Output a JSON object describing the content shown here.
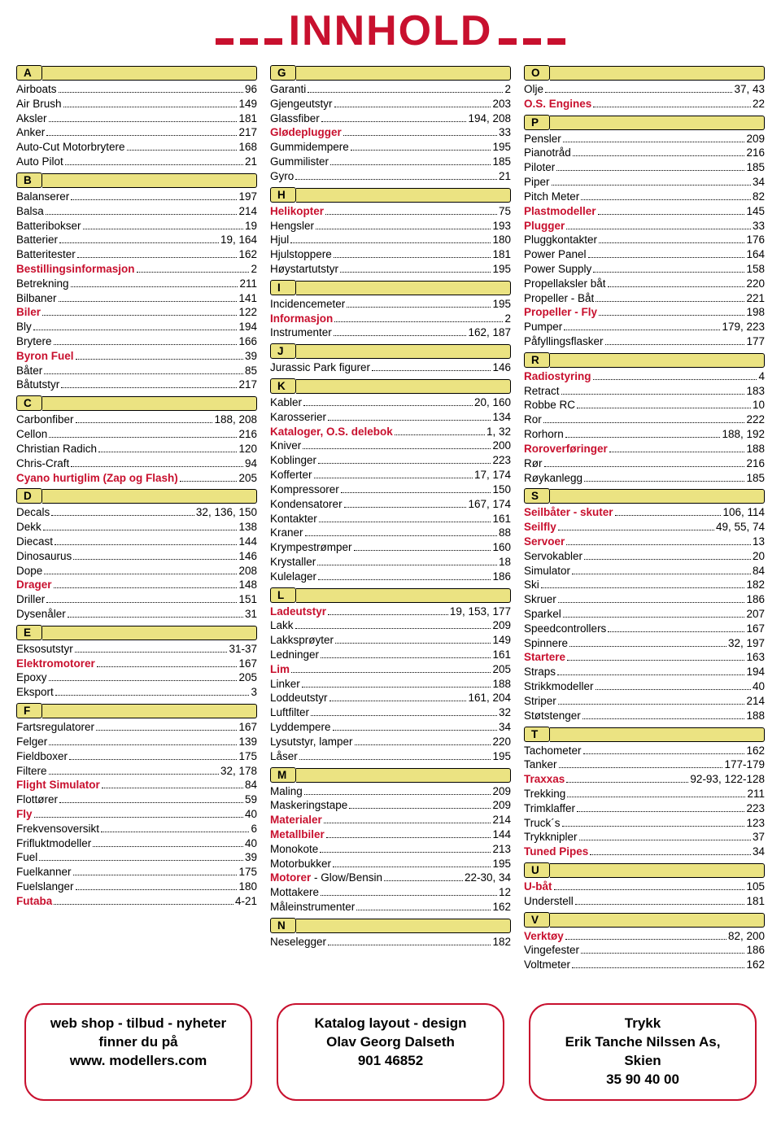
{
  "title_text": "INNHOLD",
  "colors": {
    "accent": "#c8102e",
    "letter_bg": "#ebe382",
    "text": "#000000",
    "background": "#ffffff"
  },
  "columns": [
    {
      "sections": [
        {
          "letter": "A",
          "items": [
            {
              "label": "Airboats",
              "page": "96"
            },
            {
              "label": "Air Brush",
              "page": "149"
            },
            {
              "label": "Aksler",
              "page": "181"
            },
            {
              "label": "Anker",
              "page": "217"
            },
            {
              "label": "Auto-Cut Motorbrytere",
              "page": "168"
            },
            {
              "label": "Auto Pilot",
              "page": "21"
            }
          ]
        },
        {
          "letter": "B",
          "items": [
            {
              "label": "Balanserer",
              "page": "197"
            },
            {
              "label": "Balsa",
              "page": "214"
            },
            {
              "label": "Batteribokser",
              "page": "19"
            },
            {
              "label": "Batterier",
              "page": "19, 164"
            },
            {
              "label": "Batteritester",
              "page": "162"
            },
            {
              "label": "Bestillingsinformasjon",
              "page": "2",
              "bold": true,
              "red": true
            },
            {
              "label": "Betrekning",
              "page": "211"
            },
            {
              "label": "Bilbaner",
              "page": "141"
            },
            {
              "label": "Biler",
              "page": "122",
              "bold": true,
              "red": true
            },
            {
              "label": "Bly",
              "page": "194"
            },
            {
              "label": "Brytere",
              "page": "166"
            },
            {
              "label": "Byron Fuel",
              "page": "39",
              "bold": true,
              "red": true
            },
            {
              "label": "Båter",
              "page": "85"
            },
            {
              "label": "Båtutstyr",
              "page": "217"
            }
          ]
        },
        {
          "letter": "C",
          "items": [
            {
              "label": "Carbonfiber",
              "page": "188, 208"
            },
            {
              "label": "Cellon",
              "page": "216"
            },
            {
              "label": "Christian Radich",
              "page": "120"
            },
            {
              "label": "Chris-Craft",
              "page": "94"
            },
            {
              "label": "Cyano hurtiglim (Zap og Flash)",
              "page": "205",
              "bold": true,
              "red": true
            }
          ]
        },
        {
          "letter": "D",
          "items": [
            {
              "label": "Decals",
              "page": "32, 136, 150"
            },
            {
              "label": "Dekk",
              "page": "138"
            },
            {
              "label": "Diecast",
              "page": "144"
            },
            {
              "label": "Dinosaurus",
              "page": "146"
            },
            {
              "label": "Dope",
              "page": "208"
            },
            {
              "label": "Drager",
              "page": "148",
              "bold": true,
              "red": true
            },
            {
              "label": "Driller",
              "page": "151"
            },
            {
              "label": "Dysenåler",
              "page": "31"
            }
          ]
        },
        {
          "letter": "E",
          "items": [
            {
              "label": "Eksosutstyr",
              "page": "31-37"
            },
            {
              "label": "Elektromotorer",
              "page": "167",
              "bold": true,
              "red": true
            },
            {
              "label": "Epoxy",
              "page": "205"
            },
            {
              "label": "Eksport",
              "page": "3"
            }
          ]
        },
        {
          "letter": "F",
          "items": [
            {
              "label": "Fartsregulatorer",
              "page": "167"
            },
            {
              "label": "Felger",
              "page": "139"
            },
            {
              "label": "Fieldboxer",
              "page": "175"
            },
            {
              "label": "Filtere",
              "page": "32, 178"
            },
            {
              "label": "Flight Simulator",
              "page": "84",
              "bold": true,
              "red": true
            },
            {
              "label": "Flottører",
              "page": "59"
            },
            {
              "label": "Fly",
              "page": "40",
              "bold": true,
              "red": true
            },
            {
              "label": "Frekvensoversikt",
              "page": "6"
            },
            {
              "label": "Frifluktmodeller",
              "page": "40"
            },
            {
              "label": "Fuel",
              "page": "39"
            },
            {
              "label": "Fuelkanner",
              "page": "175"
            },
            {
              "label": "Fuelslanger",
              "page": "180"
            },
            {
              "label": "Futaba",
              "page": "4-21",
              "bold": true,
              "red": true
            }
          ]
        }
      ]
    },
    {
      "sections": [
        {
          "letter": "G",
          "items": [
            {
              "label": "Garanti",
              "page": "2"
            },
            {
              "label": "Gjengeutstyr",
              "page": "203"
            },
            {
              "label": "Glassfiber",
              "page": "194, 208"
            },
            {
              "label": "Glødeplugger",
              "page": "33",
              "bold": true,
              "red": true
            },
            {
              "label": "Gummidempere",
              "page": "195"
            },
            {
              "label": "Gummilister",
              "page": "185"
            },
            {
              "label": "Gyro",
              "page": "21"
            }
          ]
        },
        {
          "letter": "H",
          "items": [
            {
              "label": "Helikopter",
              "page": "75",
              "bold": true,
              "red": true
            },
            {
              "label": "Hengsler",
              "page": "193"
            },
            {
              "label": "Hjul",
              "page": "180"
            },
            {
              "label": "Hjulstoppere",
              "page": "181"
            },
            {
              "label": "Høystartutstyr",
              "page": "195"
            }
          ]
        },
        {
          "letter": "I",
          "items": [
            {
              "label": "Incidencemeter",
              "page": "195"
            },
            {
              "label": "Informasjon",
              "page": "2",
              "bold": true,
              "red": true
            },
            {
              "label": "Instrumenter",
              "page": "162, 187"
            }
          ]
        },
        {
          "letter": "J",
          "items": [
            {
              "label": "Jurassic Park figurer",
              "page": "146"
            }
          ]
        },
        {
          "letter": "K",
          "items": [
            {
              "label": "Kabler",
              "page": "20, 160"
            },
            {
              "label": "Karosserier",
              "page": "134"
            },
            {
              "label": "Kataloger, O.S. delebok",
              "page": "1, 32",
              "bold": true,
              "red": true
            },
            {
              "label": "Kniver",
              "page": "200"
            },
            {
              "label": "Koblinger",
              "page": "223"
            },
            {
              "label": "Kofferter",
              "page": "17, 174"
            },
            {
              "label": "Kompressorer",
              "page": "150"
            },
            {
              "label": "Kondensatorer",
              "page": "167, 174"
            },
            {
              "label": "Kontakter",
              "page": "161"
            },
            {
              "label": "Kraner",
              "page": "88"
            },
            {
              "label": "Krympestrømper",
              "page": "160"
            },
            {
              "label": "Krystaller",
              "page": "18"
            },
            {
              "label": "Kulelager",
              "page": "186"
            }
          ]
        },
        {
          "letter": "L",
          "items": [
            {
              "label": "Ladeutstyr",
              "page": "19, 153, 177",
              "bold": true,
              "red": true
            },
            {
              "label": "Lakk",
              "page": "209"
            },
            {
              "label": "Lakksprøyter",
              "page": "149"
            },
            {
              "label": "Ledninger",
              "page": "161"
            },
            {
              "label": "Lim",
              "page": "205",
              "bold": true,
              "red": true
            },
            {
              "label": "Linker",
              "page": "188"
            },
            {
              "label": "Loddeutstyr",
              "page": "161, 204"
            },
            {
              "label": "Luftfilter",
              "page": "32"
            },
            {
              "label": "Lyddempere",
              "page": "34"
            },
            {
              "label": "Lysutstyr, lamper",
              "page": "220"
            },
            {
              "label": "Låser",
              "page": "195"
            }
          ]
        },
        {
          "letter": "M",
          "items": [
            {
              "label": "Maling",
              "page": "209"
            },
            {
              "label": "Maskeringstape",
              "page": "209"
            },
            {
              "label": "Materialer",
              "page": "214",
              "bold": true,
              "red": true
            },
            {
              "label": "Metallbiler",
              "page": "144",
              "bold": true,
              "red": true
            },
            {
              "label": "Monokote",
              "page": "213"
            },
            {
              "label": "Motorbukker",
              "page": "195"
            },
            {
              "label": "Motorer - Glow/Bensin",
              "page": "22-30, 34",
              "partred": true
            },
            {
              "label": "Mottakere",
              "page": "12"
            },
            {
              "label": "Måleinstrumenter",
              "page": "162"
            }
          ]
        },
        {
          "letter": "N",
          "items": [
            {
              "label": "Neselegger",
              "page": "182"
            }
          ]
        }
      ]
    },
    {
      "sections": [
        {
          "letter": "O",
          "items": [
            {
              "label": "Olje",
              "page": "37, 43"
            },
            {
              "label": "O.S. Engines",
              "page": "22",
              "bold": true,
              "red": true
            }
          ]
        },
        {
          "letter": "P",
          "items": [
            {
              "label": "Pensler",
              "page": "209"
            },
            {
              "label": "Pianotråd",
              "page": "216"
            },
            {
              "label": "Piloter",
              "page": "185"
            },
            {
              "label": "Piper",
              "page": "34"
            },
            {
              "label": "Pitch Meter",
              "page": "82"
            },
            {
              "label": "Plastmodeller",
              "page": "145",
              "bold": true,
              "red": true
            },
            {
              "label": "Plugger",
              "page": "33",
              "bold": true,
              "red": true
            },
            {
              "label": "Pluggkontakter",
              "page": "176"
            },
            {
              "label": "Power Panel",
              "page": "164"
            },
            {
              "label": "Power Supply",
              "page": "158"
            },
            {
              "label": "Propellaksler båt",
              "page": "220"
            },
            {
              "label": "Propeller - Båt",
              "page": "221"
            },
            {
              "label": "Propeller - Fly",
              "page": "198",
              "bold": true,
              "red": true
            },
            {
              "label": "Pumper",
              "page": "179, 223"
            },
            {
              "label": "Påfyllingsflasker",
              "page": "177"
            }
          ]
        },
        {
          "letter": "R",
          "items": [
            {
              "label": "Radiostyring",
              "page": "4",
              "bold": true,
              "red": true
            },
            {
              "label": "Retract",
              "page": "183"
            },
            {
              "label": "Robbe RC",
              "page": "10"
            },
            {
              "label": "Ror",
              "page": "222"
            },
            {
              "label": "Rorhorn",
              "page": "188, 192"
            },
            {
              "label": "Roroverføringer",
              "page": "188",
              "bold": true,
              "red": true
            },
            {
              "label": "Rør",
              "page": "216"
            },
            {
              "label": "Røykanlegg",
              "page": "185"
            }
          ]
        },
        {
          "letter": "S",
          "items": [
            {
              "label": "Seilbåter - skuter",
              "page": "106, 114",
              "bold": true,
              "red": true
            },
            {
              "label": "Seilfly",
              "page": "49, 55, 74",
              "bold": true,
              "red": true
            },
            {
              "label": "Servoer",
              "page": "13",
              "bold": true,
              "red": true
            },
            {
              "label": "Servokabler",
              "page": "20"
            },
            {
              "label": "Simulator",
              "page": "84"
            },
            {
              "label": "Ski",
              "page": "182"
            },
            {
              "label": "Skruer",
              "page": "186"
            },
            {
              "label": "Sparkel",
              "page": "207"
            },
            {
              "label": "Speedcontrollers",
              "page": "167"
            },
            {
              "label": "Spinnere",
              "page": "32, 197"
            },
            {
              "label": "Startere",
              "page": "163",
              "bold": true,
              "red": true
            },
            {
              "label": "Straps",
              "page": "194"
            },
            {
              "label": "Strikkmodeller",
              "page": "40"
            },
            {
              "label": "Striper",
              "page": "214"
            },
            {
              "label": "Støtstenger",
              "page": "188"
            }
          ]
        },
        {
          "letter": "T",
          "items": [
            {
              "label": "Tachometer",
              "page": "162"
            },
            {
              "label": "Tanker",
              "page": "177-179"
            },
            {
              "label": "Traxxas",
              "page": "92-93, 122-128",
              "bold": true,
              "red": true
            },
            {
              "label": "Trekking",
              "page": "211"
            },
            {
              "label": "Trimklaffer",
              "page": "223"
            },
            {
              "label": "Truck´s",
              "page": "123"
            },
            {
              "label": "Trykknipler",
              "page": "37"
            },
            {
              "label": "Tuned Pipes",
              "page": "34",
              "bold": true,
              "red": true
            }
          ]
        },
        {
          "letter": "U",
          "items": [
            {
              "label": "U-båt",
              "page": "105",
              "bold": true,
              "red": true
            },
            {
              "label": "Understell",
              "page": "181"
            }
          ]
        },
        {
          "letter": "V",
          "items": [
            {
              "label": "Verktøy",
              "page": "82, 200",
              "bold": true,
              "red": true
            },
            {
              "label": "Vingefester",
              "page": "186"
            },
            {
              "label": "Voltmeter",
              "page": "162"
            }
          ]
        }
      ]
    }
  ],
  "footer": [
    {
      "lines": [
        "web shop - tilbud - nyheter",
        "finner du på",
        "www. modellers.com"
      ]
    },
    {
      "lines": [
        "Katalog layout - design",
        "Olav Georg Dalseth",
        "901 46852"
      ]
    },
    {
      "lines": [
        "Trykk",
        "Erik Tanche Nilssen As, Skien",
        "35 90 40 00"
      ]
    }
  ]
}
